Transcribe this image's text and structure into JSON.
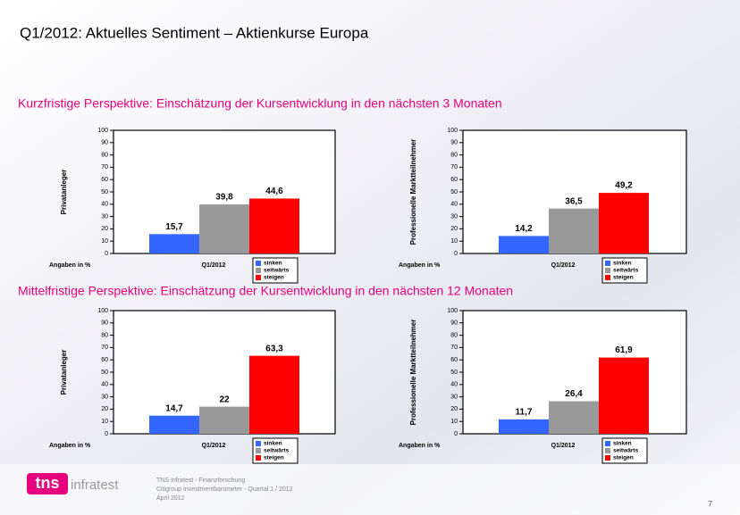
{
  "title": "Q1/2012: Aktuelles Sentiment – Aktienkurse Europa",
  "headings": [
    "Kurzfristige Perspektive: Einschätzung der Kursentwicklung in den nächsten 3 Monaten",
    "Mittelfristige Perspektive: Einschätzung der Kursentwicklung in den nächsten 12 Monaten"
  ],
  "footer": {
    "logo": "tns",
    "logo_sub": "infratest",
    "lines": [
      "TNS Infratest - Finanzforschung",
      "Citigroup Investmentbarometer - Quartal 1 / 2012",
      "April 2012"
    ],
    "page": "7"
  },
  "chart_data": [
    {
      "type": "bar",
      "ylabel": "Privatanleger",
      "note": "Angaben in %",
      "categories": [
        "Q1/2012"
      ],
      "ylim": [
        0,
        100
      ],
      "yticks": [
        0,
        10,
        20,
        30,
        40,
        50,
        60,
        70,
        80,
        90,
        100
      ],
      "series": [
        {
          "name": "sinken",
          "color": "#3366ff",
          "values": [
            15.7
          ],
          "value_labels": [
            "15,7"
          ]
        },
        {
          "name": "seitwärts",
          "color": "#999999",
          "values": [
            39.8
          ],
          "value_labels": [
            "39,8"
          ]
        },
        {
          "name": "steigen",
          "color": "#ff0000",
          "values": [
            44.6
          ],
          "value_labels": [
            "44,6"
          ]
        }
      ]
    },
    {
      "type": "bar",
      "ylabel": "Professionelle Marktteilnehmer",
      "note": "Angaben in %",
      "categories": [
        "Q1/2012"
      ],
      "ylim": [
        0,
        100
      ],
      "yticks": [
        0,
        10,
        20,
        30,
        40,
        50,
        60,
        70,
        80,
        90,
        100
      ],
      "series": [
        {
          "name": "sinken",
          "color": "#3366ff",
          "values": [
            14.2
          ],
          "value_labels": [
            "14,2"
          ]
        },
        {
          "name": "seitwärts",
          "color": "#999999",
          "values": [
            36.5
          ],
          "value_labels": [
            "36,5"
          ]
        },
        {
          "name": "steigen",
          "color": "#ff0000",
          "values": [
            49.2
          ],
          "value_labels": [
            "49,2"
          ]
        }
      ]
    },
    {
      "type": "bar",
      "ylabel": "Privatanleger",
      "note": "Angaben in %",
      "categories": [
        "Q1/2012"
      ],
      "ylim": [
        0,
        100
      ],
      "yticks": [
        0,
        10,
        20,
        30,
        40,
        50,
        60,
        70,
        80,
        90,
        100
      ],
      "series": [
        {
          "name": "sinken",
          "color": "#3366ff",
          "values": [
            14.7
          ],
          "value_labels": [
            "14,7"
          ]
        },
        {
          "name": "seitwärts",
          "color": "#999999",
          "values": [
            22
          ]
        },
        {
          "name": "steigen",
          "color": "#ff0000",
          "values": [
            63.3
          ],
          "value_labels": [
            "63,3"
          ]
        }
      ]
    },
    {
      "type": "bar",
      "ylabel": "Professionelle Marktteilnehmer",
      "note": "Angaben in %",
      "categories": [
        "Q1/2012"
      ],
      "ylim": [
        0,
        100
      ],
      "yticks": [
        0,
        10,
        20,
        30,
        40,
        50,
        60,
        70,
        80,
        90,
        100
      ],
      "series": [
        {
          "name": "sinken",
          "color": "#3366ff",
          "values": [
            11.7
          ],
          "value_labels": [
            "11,7"
          ]
        },
        {
          "name": "seitwärts",
          "color": "#999999",
          "values": [
            26.4
          ],
          "value_labels": [
            "26,4"
          ]
        },
        {
          "name": "steigen",
          "color": "#ff0000",
          "values": [
            61.9
          ],
          "value_labels": [
            "61,9"
          ]
        }
      ]
    }
  ]
}
